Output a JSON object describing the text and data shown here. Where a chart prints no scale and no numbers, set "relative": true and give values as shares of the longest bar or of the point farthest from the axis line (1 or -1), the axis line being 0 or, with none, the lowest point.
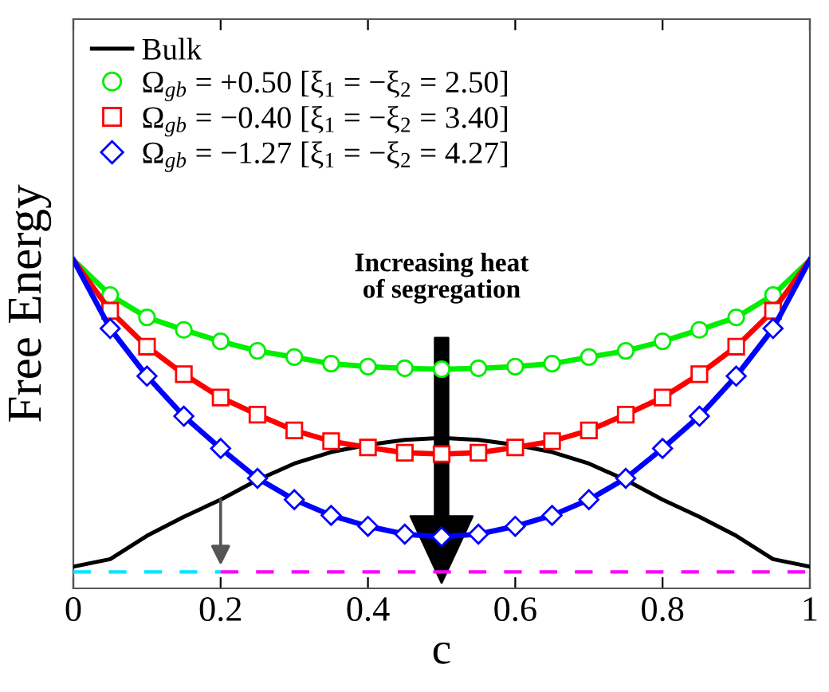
{
  "chart_data": {
    "type": "line",
    "xlabel": "c",
    "ylabel": "Free Energy",
    "relative": true,
    "xlim": [
      0,
      1
    ],
    "xticks": [
      0,
      0.2,
      0.4,
      0.6,
      0.8,
      1
    ],
    "grid": false,
    "legend": "top left",
    "tick_labels": "x",
    "series": [
      {
        "name": "Bulk",
        "color": "#000000",
        "marker": "none",
        "line_style": "solid",
        "x": [
          0,
          0.05,
          0.1,
          0.15,
          0.2,
          0.25,
          0.3,
          0.35,
          0.4,
          0.45,
          0.5,
          0.55,
          0.6,
          0.65,
          0.7,
          0.75,
          0.8,
          0.85,
          0.9,
          0.95,
          1
        ],
        "values": [
          0.066,
          0.089,
          0.16,
          0.218,
          0.27,
          0.33,
          0.38,
          0.415,
          0.437,
          0.452,
          0.458,
          0.452,
          0.437,
          0.415,
          0.38,
          0.33,
          0.27,
          0.218,
          0.16,
          0.089,
          0.066
        ]
      },
      {
        "name": "Ω$_{gb}$ = +0.50 [ξ$_{1}$ = −ξ$_{2}$ = 2.50]",
        "color": "#00ee00",
        "marker": "circle",
        "line_style": "solid",
        "x": [
          0,
          0.05,
          0.1,
          0.15,
          0.2,
          0.25,
          0.3,
          0.35,
          0.4,
          0.45,
          0.5,
          0.55,
          0.6,
          0.65,
          0.7,
          0.75,
          0.8,
          0.85,
          0.9,
          0.95,
          1
        ],
        "values": [
          1,
          0.893,
          0.825,
          0.787,
          0.752,
          0.723,
          0.704,
          0.684,
          0.675,
          0.67,
          0.667,
          0.67,
          0.675,
          0.684,
          0.704,
          0.723,
          0.752,
          0.787,
          0.825,
          0.893,
          1
        ]
      },
      {
        "name": "Ω$_{gb}$ = −0.40 [ξ$_{1}$ = −ξ$_{2}$ = 3.40]",
        "color": "#ff0000",
        "marker": "square",
        "line_style": "solid",
        "x": [
          0,
          0.05,
          0.1,
          0.15,
          0.2,
          0.25,
          0.3,
          0.35,
          0.4,
          0.45,
          0.5,
          0.55,
          0.6,
          0.65,
          0.7,
          0.75,
          0.8,
          0.85,
          0.9,
          0.95,
          1
        ],
        "values": [
          1,
          0.845,
          0.736,
          0.652,
          0.581,
          0.529,
          0.481,
          0.448,
          0.429,
          0.413,
          0.409,
          0.413,
          0.429,
          0.448,
          0.481,
          0.529,
          0.581,
          0.652,
          0.736,
          0.845,
          1
        ]
      },
      {
        "name": "Ω$_{gb}$ = −1.27 [ξ$_{1}$ = −ξ$_{2}$ = 4.27]",
        "color": "#0000ff",
        "marker": "diamond",
        "line_style": "solid",
        "x": [
          0,
          0.05,
          0.1,
          0.15,
          0.2,
          0.25,
          0.3,
          0.35,
          0.4,
          0.45,
          0.5,
          0.55,
          0.6,
          0.65,
          0.7,
          0.75,
          0.8,
          0.85,
          0.9,
          0.95,
          1
        ],
        "values": [
          1,
          0.791,
          0.646,
          0.524,
          0.426,
          0.335,
          0.27,
          0.222,
          0.189,
          0.165,
          0.157,
          0.165,
          0.189,
          0.222,
          0.27,
          0.335,
          0.426,
          0.524,
          0.646,
          0.791,
          1
        ]
      },
      {
        "color": "#00e5ff",
        "marker": "none",
        "line_style": "dashed",
        "x": [
          0,
          0.2
        ],
        "values": [
          0.05,
          0.05
        ]
      },
      {
        "color": "#ff00ff",
        "marker": "none",
        "line_style": "dashed",
        "x": [
          0.2,
          1
        ],
        "values": [
          0.05,
          0.05
        ]
      }
    ],
    "annotations": [
      "Increasing heat\nof segregation"
    ]
  }
}
